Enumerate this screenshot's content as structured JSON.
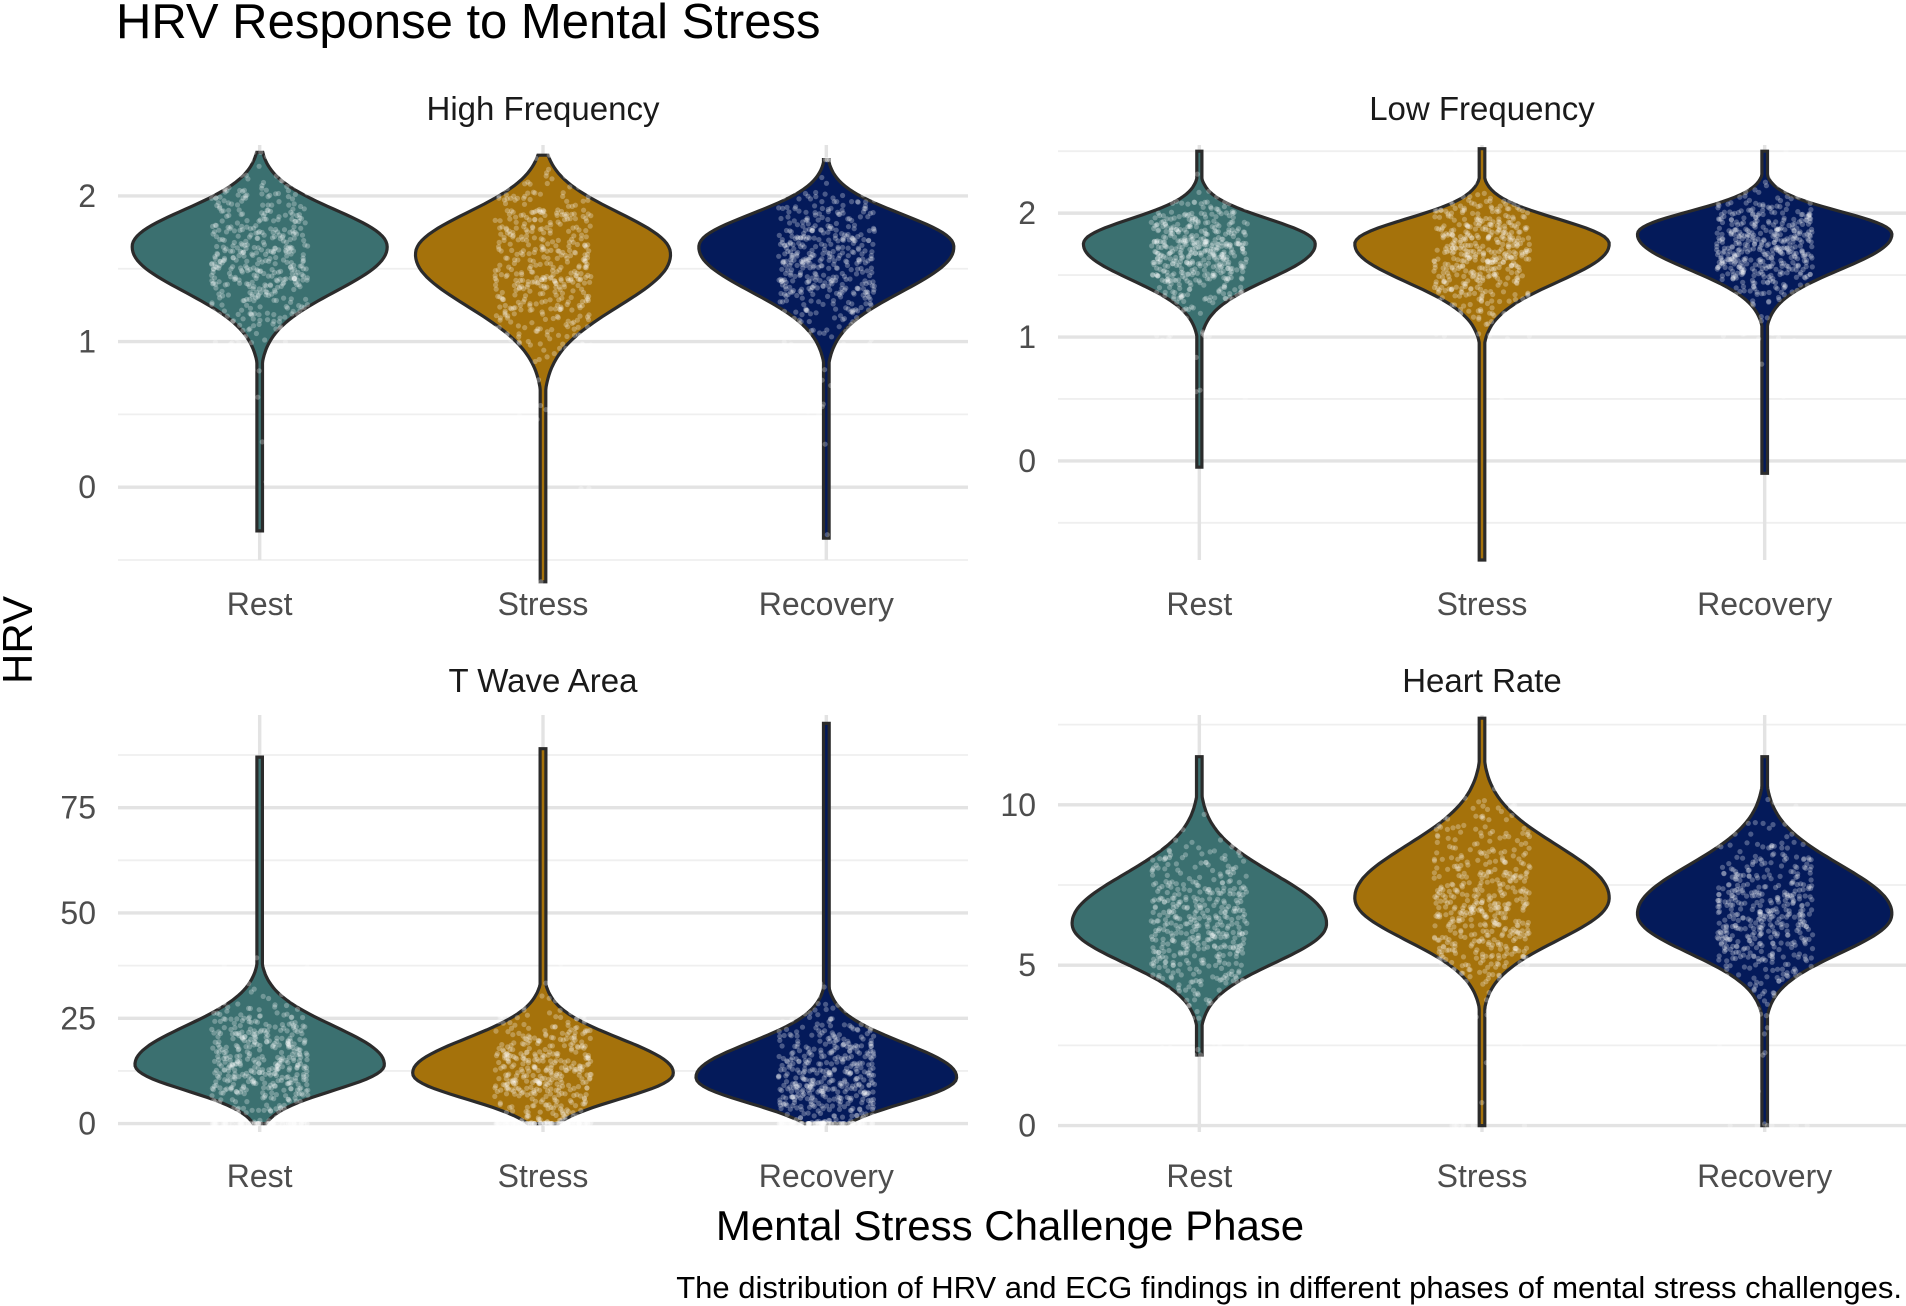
{
  "chart_data": {
    "type": "violin",
    "title": "HRV Response to Mental Stress",
    "xlabel": "Mental Stress Challenge Phase",
    "ylabel": "HRV",
    "caption": "The distribution of HRV and ECG findings in different phases of mental stress challenges.",
    "categories": [
      "Rest",
      "Stress",
      "Recovery"
    ],
    "colors": {
      "Rest": "#3b7070",
      "Stress": "#a5720b",
      "Recovery": "#041a5a"
    },
    "grid": true,
    "legend": "none",
    "panels": [
      {
        "name": "High Frequency",
        "ylim": [
          -0.5,
          2.35
        ],
        "yticks": [
          0,
          1,
          2
        ],
        "ytick_labels": [
          "0",
          "1",
          "2"
        ],
        "violins": [
          {
            "category": "Rest",
            "min": -0.3,
            "max": 2.3,
            "mode": 1.65,
            "q1": 1.35,
            "median": 1.6,
            "q3": 1.8,
            "spread_below": 0.3,
            "spread_above": 0.25,
            "max_width": 0.45
          },
          {
            "category": "Stress",
            "min": -0.65,
            "max": 2.28,
            "mode": 1.6,
            "q1": 1.25,
            "median": 1.55,
            "q3": 1.8,
            "spread_below": 0.35,
            "spread_above": 0.28,
            "max_width": 0.45
          },
          {
            "category": "Recovery",
            "min": -0.35,
            "max": 2.25,
            "mode": 1.65,
            "q1": 1.35,
            "median": 1.6,
            "q3": 1.8,
            "spread_below": 0.3,
            "spread_above": 0.22,
            "max_width": 0.45
          }
        ]
      },
      {
        "name": "Low Frequency",
        "ylim": [
          -0.8,
          2.55
        ],
        "yticks": [
          0,
          1,
          2
        ],
        "ytick_labels": [
          "0",
          "1",
          "2"
        ],
        "violins": [
          {
            "category": "Rest",
            "min": -0.05,
            "max": 2.5,
            "mode": 1.75,
            "q1": 1.5,
            "median": 1.7,
            "q3": 1.85,
            "spread_below": 0.28,
            "spread_above": 0.2,
            "max_width": 0.41
          },
          {
            "category": "Stress",
            "min": -0.8,
            "max": 2.52,
            "mode": 1.75,
            "q1": 1.45,
            "median": 1.7,
            "q3": 1.85,
            "spread_below": 0.3,
            "spread_above": 0.2,
            "max_width": 0.45
          },
          {
            "category": "Recovery",
            "min": -0.1,
            "max": 2.5,
            "mode": 1.83,
            "q1": 1.55,
            "median": 1.75,
            "q3": 1.9,
            "spread_below": 0.28,
            "spread_above": 0.18,
            "max_width": 0.45
          }
        ]
      },
      {
        "name": "T Wave Area",
        "ylim": [
          -2,
          97
        ],
        "yticks": [
          0,
          25,
          50,
          75
        ],
        "ytick_labels": [
          "0",
          "25",
          "50",
          "75"
        ],
        "violins": [
          {
            "category": "Rest",
            "min": 0,
            "max": 87,
            "mode": 14,
            "q1": 9,
            "median": 15,
            "q3": 22,
            "spread_below": 6,
            "spread_above": 9,
            "max_width": 0.44
          },
          {
            "category": "Stress",
            "min": 0,
            "max": 89,
            "mode": 12,
            "q1": 7,
            "median": 12,
            "q3": 20,
            "spread_below": 6,
            "spread_above": 8,
            "max_width": 0.46
          },
          {
            "category": "Recovery",
            "min": 0,
            "max": 95,
            "mode": 11,
            "q1": 7,
            "median": 12,
            "q3": 19,
            "spread_below": 6,
            "spread_above": 8,
            "max_width": 0.46
          }
        ]
      },
      {
        "name": "Heart Rate",
        "ylim": [
          -0.2,
          12.8
        ],
        "yticks": [
          0,
          5,
          10
        ],
        "ytick_labels": [
          "0",
          "5",
          "10"
        ],
        "violins": [
          {
            "category": "Rest",
            "min": 2.2,
            "max": 11.5,
            "mode": 6.3,
            "q1": 5.3,
            "median": 6.3,
            "q3": 7.3,
            "spread_below": 1.2,
            "spread_above": 1.5,
            "max_width": 0.45
          },
          {
            "category": "Stress",
            "min": 0,
            "max": 12.7,
            "mode": 7.1,
            "q1": 6.0,
            "median": 7.1,
            "q3": 8.2,
            "spread_below": 1.3,
            "spread_above": 1.6,
            "max_width": 0.45
          },
          {
            "category": "Recovery",
            "min": 0,
            "max": 11.5,
            "mode": 6.6,
            "q1": 5.5,
            "median": 6.5,
            "q3": 7.5,
            "spread_below": 1.2,
            "spread_above": 1.5,
            "max_width": 0.45
          }
        ]
      }
    ]
  }
}
